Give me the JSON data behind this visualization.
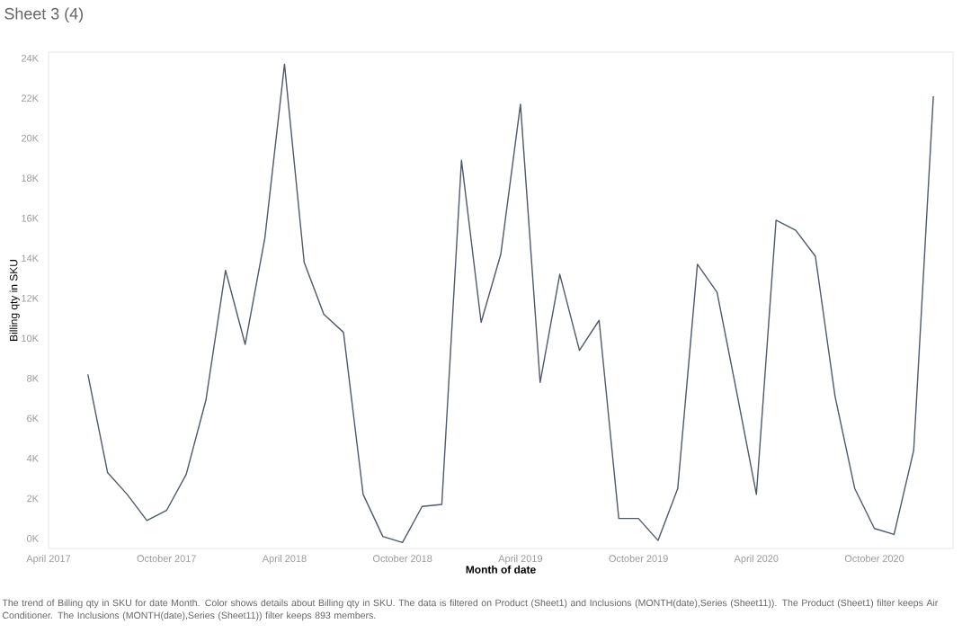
{
  "chart_data": {
    "type": "line",
    "title": "Sheet 3 (4)",
    "xlabel": "Month of date",
    "ylabel": "Billing qty in SKU",
    "annotations": [
      "The trend of Billing qty in SKU for date Month.  Color shows details about Billing qty in SKU. The data is filtered on Product (Sheet1) and Inclusions (MONTH(date),Series (Sheet11)). The Product (Sheet1) filter keeps Air Conditioner.  The Inclusions (MONTH(date),Series (Sheet11)) filter keeps 893 members."
    ],
    "x": [
      "2017-06",
      "2017-07",
      "2017-08",
      "2017-09",
      "2017-10",
      "2017-11",
      "2017-12",
      "2018-01",
      "2018-02",
      "2018-03",
      "2018-04",
      "2018-05",
      "2018-06",
      "2018-07",
      "2018-08",
      "2018-09",
      "2018-10",
      "2018-11",
      "2018-12",
      "2019-01",
      "2019-02",
      "2019-03",
      "2019-04",
      "2019-05",
      "2019-06",
      "2019-07",
      "2019-08",
      "2019-09",
      "2019-10",
      "2019-11",
      "2019-12",
      "2020-01",
      "2020-02",
      "2020-03",
      "2020-04",
      "2020-05",
      "2020-06",
      "2020-07",
      "2020-08",
      "2020-09",
      "2020-10",
      "2020-11",
      "2020-12",
      "2021-01"
    ],
    "series": [
      {
        "color": "#4e5a6e",
        "values": [
          8200,
          3300,
          2200,
          900,
          1400,
          3200,
          6900,
          13400,
          9700,
          15000,
          23700,
          13800,
          11200,
          10300,
          2200,
          100,
          -200,
          1600,
          1700,
          18900,
          10800,
          14200,
          21700,
          7800,
          13200,
          9400,
          10900,
          1000,
          1000,
          -100,
          2500,
          13700,
          12300,
          7300,
          2200,
          15900,
          15400,
          14100,
          7100,
          2500,
          500,
          200,
          4400,
          22100
        ]
      }
    ],
    "xlim": [
      "2017-04",
      "2021-02"
    ],
    "ylim": [
      -500,
      24300
    ],
    "xticks": [
      {
        "value": "2017-04",
        "label": "April 2017"
      },
      {
        "value": "2017-10",
        "label": "October 2017"
      },
      {
        "value": "2018-04",
        "label": "April 2018"
      },
      {
        "value": "2018-10",
        "label": "October 2018"
      },
      {
        "value": "2019-04",
        "label": "April 2019"
      },
      {
        "value": "2019-10",
        "label": "October 2019"
      },
      {
        "value": "2020-04",
        "label": "April 2020"
      },
      {
        "value": "2020-10",
        "label": "October 2020"
      }
    ],
    "yticks": [
      {
        "value": 0,
        "label": "0K"
      },
      {
        "value": 2000,
        "label": "2K"
      },
      {
        "value": 4000,
        "label": "4K"
      },
      {
        "value": 6000,
        "label": "6K"
      },
      {
        "value": 8000,
        "label": "8K"
      },
      {
        "value": 10000,
        "label": "10K"
      },
      {
        "value": 12000,
        "label": "12K"
      },
      {
        "value": 14000,
        "label": "14K"
      },
      {
        "value": 16000,
        "label": "16K"
      },
      {
        "value": 18000,
        "label": "18K"
      },
      {
        "value": 20000,
        "label": "20K"
      },
      {
        "value": 22000,
        "label": "22K"
      },
      {
        "value": 24000,
        "label": "24K"
      }
    ],
    "grid": false
  }
}
